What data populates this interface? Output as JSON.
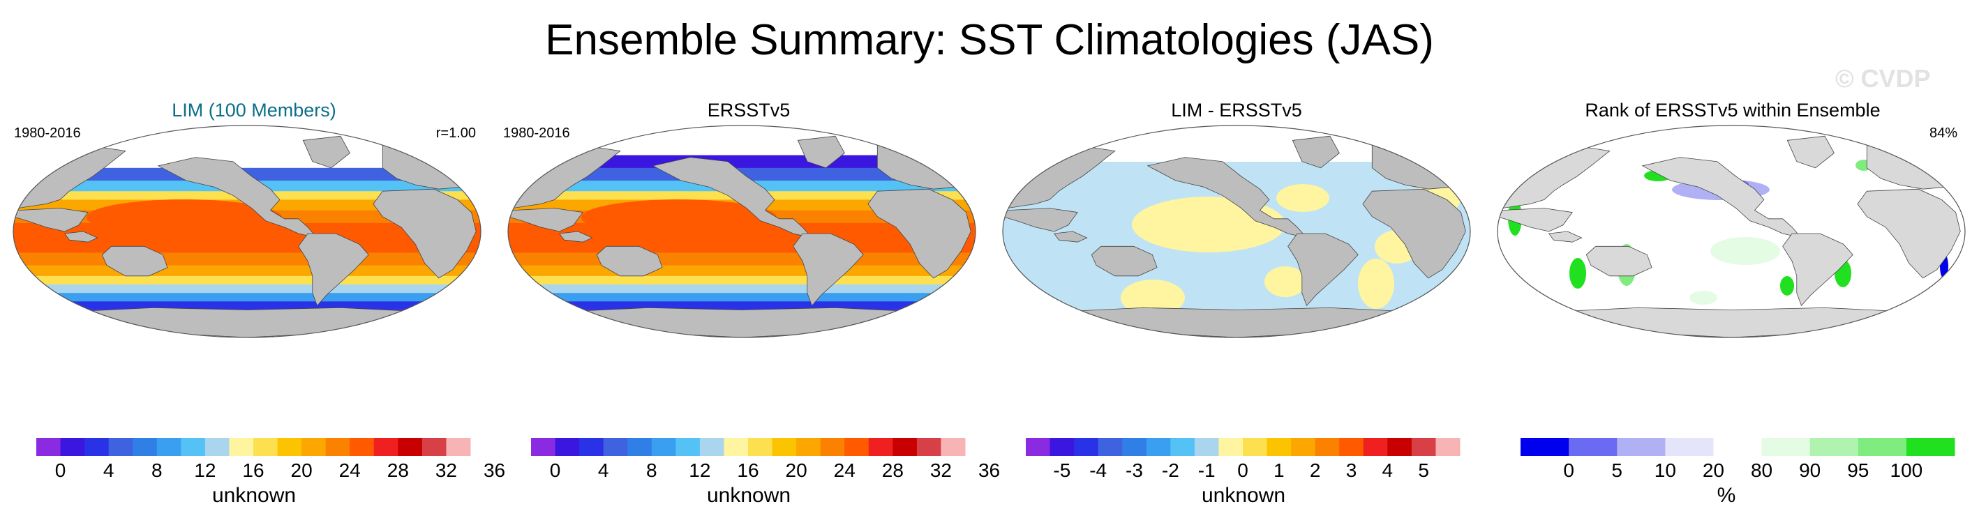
{
  "title": "Ensemble Summary: SST Climatologies (JAS)",
  "watermark": "© CVDP",
  "colors": {
    "land": "#bdbdbd",
    "outline": "#555555",
    "rank_land": "#d9d9d9",
    "lim_title": "#0b6f8a"
  },
  "panels": [
    {
      "title": "LIM (100 Members)",
      "left_label": "1980-2016",
      "right_label": "r=1.00",
      "type": "sst",
      "colorbar": {
        "colors": [
          "#8a2be2",
          "#3a16e0",
          "#2a32e8",
          "#3f63e0",
          "#2f7fe6",
          "#3a9ff0",
          "#55c2f5",
          "#a9d5ee",
          "#fff4a0",
          "#fde050",
          "#fcc300",
          "#fca600",
          "#fb8200",
          "#ff5a00",
          "#f02020",
          "#c80000",
          "#d84048",
          "#f8b4b4"
        ],
        "tick_labels": [
          "0",
          "4",
          "8",
          "12",
          "16",
          "20",
          "24",
          "28",
          "32",
          "36"
        ],
        "units": "unknown"
      }
    },
    {
      "title": "ERSSTv5",
      "left_label": "1980-2016",
      "right_label": "",
      "type": "sst",
      "colorbar": {
        "colors": [
          "#8a2be2",
          "#3a16e0",
          "#2a32e8",
          "#3f63e0",
          "#2f7fe6",
          "#3a9ff0",
          "#55c2f5",
          "#a9d5ee",
          "#fff4a0",
          "#fde050",
          "#fcc300",
          "#fca600",
          "#fb8200",
          "#ff5a00",
          "#f02020",
          "#c80000",
          "#d84048",
          "#f8b4b4"
        ],
        "tick_labels": [
          "0",
          "4",
          "8",
          "12",
          "16",
          "20",
          "24",
          "28",
          "32",
          "36"
        ],
        "units": "unknown"
      }
    },
    {
      "title": "LIM - ERSSTv5",
      "left_label": "",
      "right_label": "",
      "type": "diff",
      "colorbar": {
        "colors": [
          "#8a2be2",
          "#3a16e0",
          "#2a32e8",
          "#3f63e0",
          "#2f7fe6",
          "#3a9ff0",
          "#55c2f5",
          "#a9d5ee",
          "#fff4a0",
          "#fde050",
          "#fcc300",
          "#fca600",
          "#fb8200",
          "#ff5a00",
          "#f02020",
          "#c80000",
          "#d84048",
          "#f8b4b4"
        ],
        "tick_labels": [
          "-5",
          "-4",
          "-3",
          "-2",
          "-1",
          "0",
          "1",
          "2",
          "3",
          "4",
          "5"
        ],
        "units": "unknown"
      }
    },
    {
      "title": "Rank of ERSSTv5 within Ensemble",
      "left_label": "",
      "right_label": "84%",
      "type": "rank",
      "colorbar": {
        "colors": [
          "#0000ee",
          "#6a6af2",
          "#b0b0f5",
          "#e4e4fa",
          "#ffffff",
          "#e4fbe4",
          "#b0f2b0",
          "#80ec80",
          "#20e020"
        ],
        "tick_labels": [
          "0",
          "5",
          "10",
          "20",
          "80",
          "90",
          "95",
          "100"
        ],
        "units": "%"
      }
    }
  ]
}
